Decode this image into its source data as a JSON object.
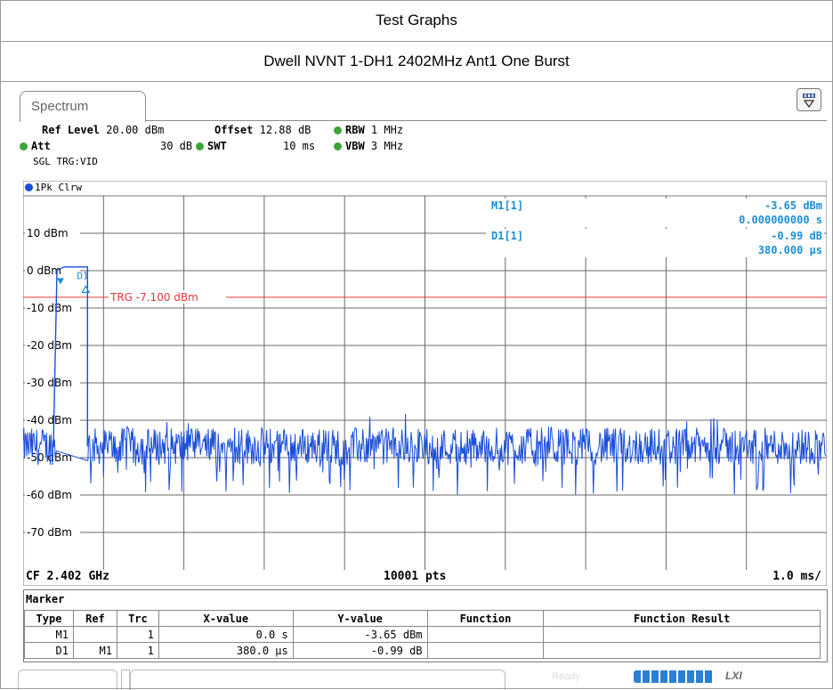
{
  "header": {
    "title": "Test Graphs",
    "subtitle": "Dwell NVNT 1-DH1 2402MHz Ant1 One Burst"
  },
  "analyzer": {
    "tab": "Spectrum",
    "settings": {
      "ref_level_label": "Ref Level",
      "ref_level": "20.00 dBm",
      "offset_label": "Offset",
      "offset": "12.88 dB",
      "rbw_label": "RBW",
      "rbw": "1 MHz",
      "att_label": "Att",
      "att": "30 dB",
      "swt_label": "SWT",
      "swt": "10 ms",
      "vbw_label": "VBW",
      "vbw": "3 MHz",
      "mode": "SGL TRG:VID"
    },
    "trace_label": "1Pk Clrw",
    "footer": {
      "cf": "CF 2.402 GHz",
      "points": "10001 pts",
      "div": "1.0 ms/"
    },
    "status": "Ready",
    "colors": {
      "trace": "#1a4ed8",
      "marker_text": "#1a8fd8",
      "trigger": "#e33b3b",
      "grid": "#6a6a6a",
      "led": "#3aa63a"
    }
  },
  "chart_data": {
    "type": "line",
    "xlabel": "",
    "ylabel": "",
    "x_range_ms": [
      0,
      10
    ],
    "ylim": [
      -80,
      20
    ],
    "y_ticks": [
      {
        "value": 10,
        "label": "10 dBm"
      },
      {
        "value": 0,
        "label": "0 dBm"
      },
      {
        "value": -10,
        "label": "-10 dBm"
      },
      {
        "value": -20,
        "label": "-20 dBm"
      },
      {
        "value": -30,
        "label": "-30 dBm"
      },
      {
        "value": -40,
        "label": "-40 dBm"
      },
      {
        "value": -50,
        "label": "-50 dBm"
      },
      {
        "value": -60,
        "label": "-60 dBm"
      },
      {
        "value": -70,
        "label": "-70 dBm"
      }
    ],
    "x_divisions": 10,
    "trigger": {
      "level_dbm": -7.1,
      "label": "TRG -7.100 dBm"
    },
    "burst": {
      "start_ms": 0.0,
      "end_ms": 0.38,
      "level_dbm": 1.0
    },
    "noise_floor": {
      "mean_dbm": -47,
      "spread_db": 5
    },
    "markers": [
      {
        "name": "M1",
        "x_ms": 0.0,
        "y_dbm": -3.65
      },
      {
        "name": "D1",
        "x_ms": 0.38,
        "y_dbm": -4.64
      }
    ],
    "marker_readout": [
      {
        "label": "M1[1]",
        "value": "-3.65 dBm",
        "time": "0.000000000 s"
      },
      {
        "label": "D1[1]",
        "value": "-0.99 dB",
        "time": "380.000 µs"
      }
    ]
  },
  "marker_table": {
    "title": "Marker",
    "columns": [
      "Type",
      "Ref",
      "Trc",
      "X-value",
      "Y-value",
      "Function",
      "Function Result"
    ],
    "rows": [
      [
        "M1",
        "",
        "1",
        "0.0 s",
        "-3.65 dBm",
        "",
        ""
      ],
      [
        "D1",
        "M1",
        "1",
        "380.0 µs",
        "-0.99 dB",
        "",
        ""
      ]
    ]
  }
}
